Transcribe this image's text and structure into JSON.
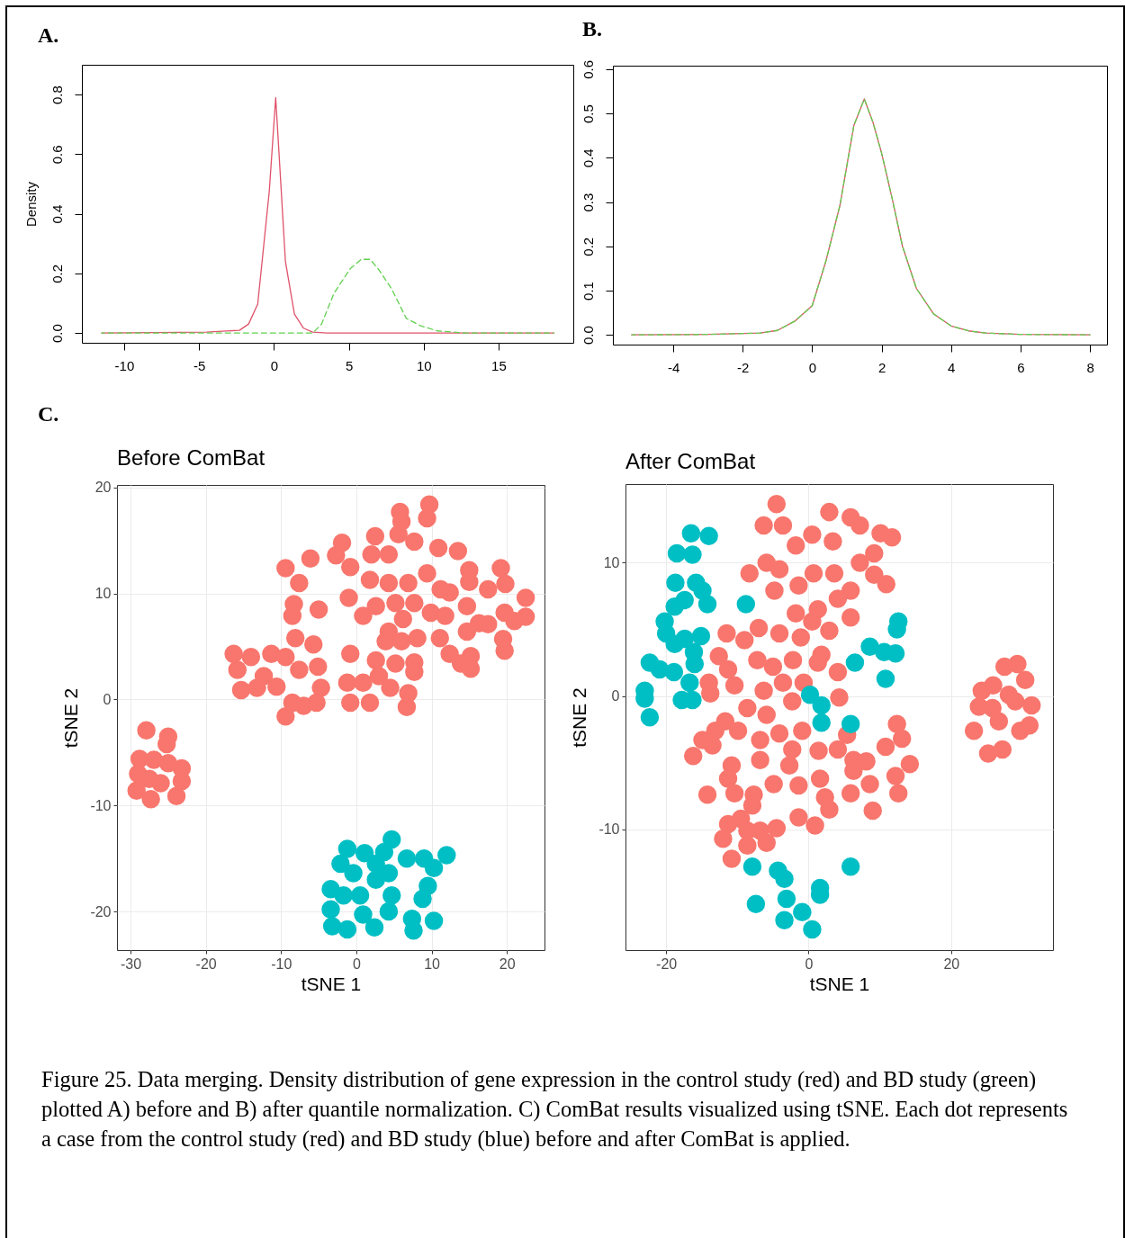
{
  "chart_data": [
    {
      "type": "line",
      "ylabel": "Density",
      "annotations": [
        "A."
      ],
      "xlim": [
        -12.82,
        19.99
      ],
      "ylim": [
        -0.033,
        0.9
      ],
      "xticks": [
        -10,
        -5,
        0,
        5,
        10,
        15
      ],
      "yticks": [
        {
          "value": 0,
          "label": "0.0"
        },
        0.2,
        0.4,
        0.6,
        0.8
      ],
      "series": [
        {
          "color": "#df536b",
          "line_style": "solid",
          "x": [
            -11.5,
            -4.5,
            -2.3,
            -1.69,
            -1.08,
            -0.31,
            0.12,
            0.77,
            1.37,
            1.98,
            2.58,
            3.54,
            18.7
          ],
          "values": [
            0,
            0.003,
            0.009,
            0.03,
            0.097,
            0.475,
            0.79,
            0.24,
            0.063,
            0.016,
            0.003,
            0,
            0
          ]
        },
        {
          "color": "#61d04f",
          "line_style": "dashed",
          "x": [
            -11.5,
            2.6,
            3.18,
            4.02,
            5.1,
            5.83,
            6.43,
            7.04,
            7.88,
            8.84,
            9.8,
            10.9,
            12.7,
            18.7
          ],
          "values": [
            0,
            0,
            0.03,
            0.134,
            0.216,
            0.247,
            0.247,
            0.21,
            0.146,
            0.049,
            0.024,
            0.007,
            0,
            0
          ]
        }
      ]
    },
    {
      "type": "line",
      "annotations": [
        "B."
      ],
      "xlim": [
        -5.74,
        8.49
      ],
      "ylim": [
        -0.022,
        0.608
      ],
      "xticks": [
        -4,
        -2,
        0,
        2,
        4,
        6,
        8
      ],
      "yticks": [
        {
          "value": 0,
          "label": "0.0"
        },
        0.1,
        0.2,
        0.3,
        0.4,
        0.5,
        0.6
      ],
      "series": [
        {
          "color": "#df536b",
          "line_style": "solid",
          "x": [
            -5.2,
            -3,
            -1.5,
            -1,
            -0.5,
            0,
            0.4,
            0.8,
            1.2,
            1.5,
            1.75,
            2.0,
            2.3,
            2.6,
            3.0,
            3.5,
            4.0,
            4.5,
            5,
            6,
            8
          ],
          "values": [
            0,
            0.001,
            0.004,
            0.01,
            0.031,
            0.066,
            0.168,
            0.293,
            0.473,
            0.533,
            0.48,
            0.41,
            0.309,
            0.2,
            0.105,
            0.047,
            0.02,
            0.009,
            0.004,
            0.001,
            0
          ]
        },
        {
          "color": "#61d04f",
          "line_style": "dashed",
          "x": [
            -5.2,
            -3,
            -1.5,
            -1,
            -0.5,
            0,
            0.4,
            0.8,
            1.2,
            1.5,
            1.75,
            2.0,
            2.3,
            2.6,
            3.0,
            3.5,
            4.0,
            4.5,
            5,
            6,
            8
          ],
          "values": [
            0,
            0.001,
            0.004,
            0.01,
            0.031,
            0.066,
            0.168,
            0.293,
            0.473,
            0.533,
            0.48,
            0.41,
            0.309,
            0.2,
            0.105,
            0.047,
            0.02,
            0.009,
            0.004,
            0.001,
            0
          ]
        }
      ]
    },
    {
      "type": "scatter",
      "title": "Before ComBat",
      "xlabel": "tSNE 1",
      "ylabel": "tSNE 2",
      "annotations": [
        "C."
      ],
      "grid": true,
      "marker": "circle",
      "xlim": [
        -31.8,
        25.0
      ],
      "ylim": [
        -23.65,
        20.25
      ],
      "xticks": [
        -30,
        -20,
        -10,
        0,
        10,
        20
      ],
      "yticks": [
        -20,
        -10,
        0,
        10,
        20
      ],
      "series": [
        {
          "color": "#f8766d",
          "x": [
            -27.9,
            -25.0,
            -28.8,
            -25.2,
            -29.2,
            -27.3,
            -23.9,
            -23.2,
            -23.2,
            -29,
            -26.9,
            -26,
            -27.5,
            -25,
            -16.3,
            -15.3,
            -14.0,
            -15.8,
            -13.2,
            -11.3,
            -10.6,
            -8.1,
            -5.7,
            -5.1,
            -4.7,
            -5.3,
            -7.0,
            -9.4,
            -8.5,
            -7.6,
            -9.4,
            -12.3,
            -9.4,
            -7.6,
            -6.1,
            -8.3,
            -8.5,
            -5.0,
            -0.8,
            -1.2,
            -0.8,
            1.8,
            0.9,
            2.6,
            4.5,
            5.2,
            7.7,
            7.7,
            6.7,
            6.9,
            3.0,
            9.7,
            9.4,
            5.8,
            6.0,
            5.6,
            2.5,
            -1.9,
            -2.7,
            -0.8,
            2.0,
            4.3,
            7.7,
            10.9,
            13.5,
            15.0,
            15.0,
            12.4,
            11.2,
            9.4,
            6.9,
            4.3,
            1.8,
            -1.0,
            0.9,
            2.6,
            5.2,
            7.7,
            9.9,
            11.8,
            11.1,
            12.4,
            14.7,
            14.7,
            15.2,
            15.2,
            13.9,
            4.3,
            3.9,
            6.0,
            8.1,
            6.2,
            17.5,
            19.2,
            19.8,
            22.5,
            22.5,
            17.5,
            19.7,
            19.5,
            19.7,
            21,
            16.3
          ],
          "values": [
            -2.9,
            -3.5,
            -5.6,
            -4.2,
            -8.6,
            -9.4,
            -9.1,
            -6.5,
            -7.7,
            -7,
            -5.7,
            -7.9,
            -7.5,
            -6,
            4.3,
            0.9,
            4.0,
            2.8,
            1.1,
            4.3,
            1.2,
            5.8,
            5.2,
            3.1,
            1.1,
            -0.3,
            -0.6,
            -1.6,
            -0.3,
            2.8,
            4,
            2.2,
            12.4,
            11.0,
            13.3,
            9.0,
            7.9,
            8.5,
            4.3,
            1.6,
            -0.3,
            -0.3,
            1.6,
            3.7,
            1.1,
            3.4,
            3.5,
            2.6,
            -0.7,
            0.6,
            2.2,
            18.4,
            17.1,
            17.7,
            16.8,
            15.6,
            15.4,
            14.8,
            13.6,
            12.5,
            13.7,
            13.7,
            14.9,
            14.3,
            14.0,
            12.2,
            11.1,
            10.1,
            10.4,
            11.9,
            11.0,
            11.0,
            11.3,
            9.6,
            7.9,
            8.8,
            9.1,
            9.1,
            8.2,
            7.9,
            5.8,
            4.3,
            8.8,
            6.4,
            4.1,
            2.9,
            3.4,
            6.4,
            5.5,
            5.5,
            5.8,
            7.6,
            10.4,
            12.4,
            10.9,
            9.6,
            7.8,
            7.1,
            8.2,
            5.7,
            4.6,
            7.4,
            7.2
          ]
        },
        {
          "color": "#00bfc4",
          "x": [
            4.7,
            -1.2,
            1.1,
            3.7,
            6.7,
            9.0,
            12.0,
            10.3,
            9.5,
            8.8,
            -2.1,
            -3.4,
            -3.4,
            -3.2,
            -1.2,
            2.4,
            4.3,
            4.7,
            4.3,
            2.6,
            0.5,
            0.9,
            -0.4,
            7.4,
            7.6,
            10.3,
            2.6,
            -1.7
          ],
          "values": [
            -13.2,
            -14.1,
            -14.5,
            -14.4,
            -15.0,
            -15.0,
            -14.7,
            -15.9,
            -17.6,
            -18.8,
            -15.5,
            -17.9,
            -19.8,
            -21.4,
            -21.7,
            -21.5,
            -20.0,
            -18.5,
            -16.4,
            -17.0,
            -18.5,
            -20.3,
            -16.4,
            -20.7,
            -21.8,
            -20.9,
            -15.5,
            -18.5
          ]
        }
      ]
    },
    {
      "type": "scatter",
      "title": "After ComBat",
      "xlabel": "tSNE 1",
      "ylabel": "tSNE 2",
      "annotations": [
        "Figure 25. Data merging. Density distribution of gene expression in the control study (red) and BD study (green) plotted A) before and B) after quantile normalization. C) ComBat results visualized using tSNE. Each dot represents a case from the control study (red) and BD study (blue) before and after ComBat is applied."
      ],
      "grid": true,
      "marker": "circle",
      "xlim": [
        -25.7,
        34.3
      ],
      "ylim": [
        -19.05,
        15.9
      ],
      "xticks": [
        -20,
        0,
        20
      ],
      "yticks": [
        -10,
        0,
        10
      ],
      "series": [
        {
          "color": "#f8766d",
          "x": [
            27.5,
            29.3,
            30.4,
            24.3,
            25.9,
            23.9,
            23.2,
            25.2,
            27.2,
            29.7,
            31.0,
            31.3,
            29.0,
            26.7,
            28.1,
            25.8,
            -4.5,
            -6.3,
            -3.6,
            -8.3,
            -5.9,
            -4.1,
            -4.8,
            -1.8,
            -1.4,
            0.7,
            0.5,
            2.9,
            5.9,
            3.4,
            3.6,
            7.2,
            10.1,
            11.7,
            9.2,
            7.2,
            9.2,
            10.9,
            5.9,
            5.9,
            4.1,
            2.9,
            1.3,
            -1.8,
            0.5,
            -1.1,
            -4.1,
            -7.0,
            -11.5,
            -9.0,
            -12.6,
            -14.0,
            -13.8,
            -11.3,
            -10.4,
            -7.2,
            -5.0,
            -2.2,
            1.8,
            1.3,
            4.1,
            4.3,
            -0.7,
            -3.6,
            -6.3,
            -2.3,
            -8.6,
            -5.9,
            -11.7,
            -13.1,
            -14.9,
            -16.2,
            -13.5,
            -9.9,
            -6.8,
            -4.1,
            -0.9,
            -2.3,
            1.4,
            4.1,
            5.4,
            6.3,
            8.1,
            6.3,
            12.4,
            13.1,
            10.8,
            14.2,
            12.2,
            12.6,
            9.0,
            8.6,
            5.9,
            2.3,
            2.9,
            1.6,
            -1.4,
            -4.9,
            -2.7,
            -6.8,
            -10.8,
            -11.3,
            -10.4,
            -7.7,
            -7.9,
            -14.2,
            -11.3,
            -9.5,
            -12.0,
            -10.8,
            -8.6,
            -5.9,
            -4.5,
            -1.4,
            0.9,
            -8.6,
            -6.8
          ],
          "values": [
            2.2,
            2.4,
            1.2,
            0.4,
            0.8,
            -0.8,
            -2.6,
            -4.3,
            -4.0,
            -2.6,
            -2.2,
            -0.7,
            -0.4,
            -1.9,
            0.1,
            -0.9,
            14.4,
            12.8,
            12.8,
            9.2,
            10.0,
            9.5,
            7.9,
            11.3,
            8.3,
            9.2,
            12.1,
            13.8,
            13.4,
            11.6,
            9.2,
            12.8,
            12.2,
            11.9,
            10.7,
            10.0,
            9.1,
            8.4,
            7.9,
            5.9,
            7.3,
            4.9,
            6.5,
            6.2,
            5.6,
            4.4,
            4.7,
            5.1,
            4.7,
            4.2,
            3.0,
            1.0,
            0.2,
            2.0,
            0.8,
            2.7,
            2.2,
            2.7,
            3.1,
            2.5,
            1.8,
            -0.1,
            1.0,
            1.0,
            0.4,
            -0.4,
            -0.9,
            -1.4,
            -1.9,
            -2.6,
            -3.3,
            -4.5,
            -3.7,
            -2.6,
            -3.3,
            -2.8,
            -2.6,
            -4.0,
            -4.1,
            -4.0,
            -2.9,
            -4.8,
            -4.9,
            -5.6,
            -2.1,
            -3.2,
            -3.8,
            -5.1,
            -6.0,
            -7.3,
            -8.6,
            -6.6,
            -7.3,
            -7.6,
            -8.5,
            -6.2,
            -6.7,
            -6.6,
            -5.2,
            -4.8,
            -5.2,
            -6.2,
            -7.3,
            -7.4,
            -8.2,
            -7.4,
            -9.6,
            -9.2,
            -10.7,
            -12.2,
            -11.2,
            -11.0,
            -9.9,
            -9.1,
            -9.7,
            -10.1,
            -10.1
          ]
        },
        {
          "color": "#00bfc4",
          "x": [
            -16.5,
            -14.0,
            -18.5,
            -16.3,
            -18.7,
            -15.8,
            -14.9,
            -14.2,
            -17.4,
            -18.8,
            -20.2,
            -20,
            -18.8,
            -17.4,
            -15.1,
            -16.1,
            -22.3,
            -20.9,
            -18.9,
            -16.0,
            -16.7,
            -17.8,
            -16.3,
            -23.0,
            -23.0,
            -22.3,
            -8.8,
            0.2,
            1.8,
            1.8,
            5.9,
            6.5,
            8.6,
            10.6,
            12.2,
            12.4,
            12.6,
            10.8,
            -7.9,
            -4.3,
            -3.4,
            -7.4,
            -3.1,
            -3.4,
            -0.9,
            0.5,
            1.6,
            1.6,
            5.9
          ],
          "values": [
            12.2,
            12.0,
            10.7,
            10.6,
            8.5,
            8.5,
            7.9,
            6.9,
            7.2,
            6.7,
            5.6,
            4.7,
            3.9,
            4.3,
            4.5,
            3.3,
            2.5,
            2.0,
            1.8,
            2.4,
            1.0,
            -0.3,
            -0.3,
            0.4,
            -0.2,
            -1.6,
            6.9,
            0.1,
            -0.7,
            -2.0,
            -2.1,
            2.5,
            3.7,
            3.3,
            3.2,
            5.0,
            5.6,
            1.3,
            -12.8,
            -13.1,
            -13.7,
            -15.6,
            -15.2,
            -16.8,
            -16.2,
            -17.5,
            -14.4,
            -14.9,
            -12.8
          ]
        }
      ]
    }
  ]
}
